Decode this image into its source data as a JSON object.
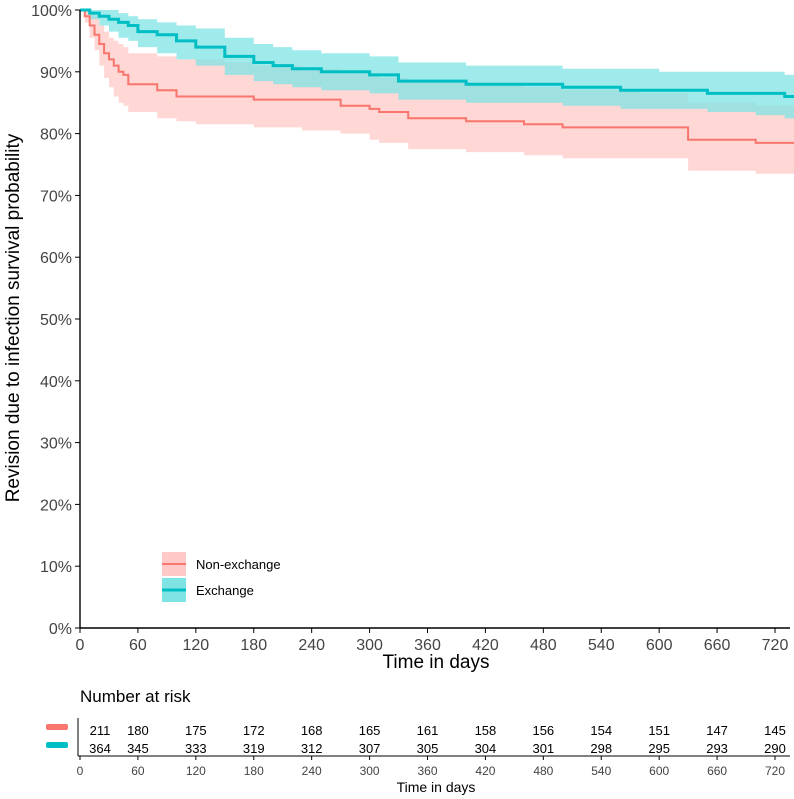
{
  "chart_data": {
    "type": "kaplan-meier",
    "title": "",
    "xlabel": "Time in days",
    "ylabel": "Revision due to infection survival probability",
    "xlim": [
      0,
      740
    ],
    "ylim": [
      0,
      100
    ],
    "x_ticks": [
      0,
      60,
      120,
      180,
      240,
      300,
      360,
      420,
      480,
      540,
      600,
      660,
      720
    ],
    "x_tick_labels": [
      "0",
      "60",
      "120",
      "180",
      "240",
      "300",
      "360",
      "420",
      "480",
      "540",
      "600",
      "660",
      "720"
    ],
    "y_ticks": [
      0,
      10,
      20,
      30,
      40,
      50,
      60,
      70,
      80,
      90,
      100
    ],
    "y_tick_labels": [
      "0%",
      "10%",
      "20%",
      "30%",
      "40%",
      "50%",
      "60%",
      "70%",
      "80%",
      "90%",
      "100%"
    ],
    "legend": {
      "position": "bottom-left",
      "entries": [
        "Non-exchange",
        "Exchange"
      ]
    },
    "series": [
      {
        "name": "Non-exchange",
        "line_color": "#F8766D",
        "band_color": "#FFC9C7",
        "x": [
          0,
          5,
          10,
          15,
          20,
          25,
          30,
          35,
          40,
          45,
          50,
          60,
          80,
          100,
          120,
          150,
          180,
          230,
          270,
          300,
          310,
          340,
          400,
          460,
          500,
          580,
          630,
          700,
          740
        ],
        "y": [
          100,
          99,
          97.5,
          96,
          94.5,
          93,
          92,
          91,
          90,
          89.5,
          88,
          88,
          87,
          86,
          86,
          86,
          85.5,
          85.5,
          84.5,
          84,
          83.5,
          82.5,
          82,
          81.5,
          81,
          81,
          79,
          78.5,
          78.5
        ],
        "lower": [
          100,
          98,
          95.5,
          93.5,
          91,
          89,
          87.5,
          86,
          85,
          84.5,
          83.5,
          83.5,
          82.5,
          82,
          81.5,
          81.5,
          81,
          80.5,
          80,
          79,
          78.5,
          77.5,
          77,
          76.5,
          76,
          76,
          74,
          73.5,
          73.5
        ],
        "upper": [
          100,
          100,
          99.5,
          99,
          97.5,
          96.5,
          95.5,
          95,
          94.5,
          94,
          93,
          93,
          92.5,
          92,
          92,
          91.5,
          91,
          90.5,
          90,
          89.5,
          89,
          88.5,
          88,
          87.5,
          87,
          86.5,
          85,
          84.5,
          84.5
        ]
      },
      {
        "name": "Exchange",
        "line_color": "#00BFC4",
        "band_color": "#7FE3E3",
        "x": [
          0,
          10,
          20,
          30,
          40,
          50,
          60,
          80,
          100,
          120,
          150,
          180,
          200,
          220,
          250,
          300,
          330,
          360,
          400,
          460,
          500,
          560,
          600,
          650,
          700,
          730,
          740
        ],
        "y": [
          100,
          99.5,
          99,
          98.5,
          98,
          97.5,
          96.5,
          96,
          95,
          94,
          92.5,
          91.5,
          91,
          90.5,
          90,
          89.5,
          88.5,
          88.5,
          88,
          88,
          87.5,
          87,
          87,
          86.5,
          86.5,
          86,
          86
        ],
        "lower": [
          100,
          98.5,
          97.5,
          96.5,
          95.5,
          95,
          94,
          93,
          92,
          91,
          89.5,
          88.5,
          88,
          87.5,
          87,
          86.5,
          85.5,
          85.5,
          85,
          85,
          84.5,
          84,
          84,
          83.5,
          83,
          82.5,
          82.5
        ],
        "upper": [
          100,
          100,
          100,
          100,
          99.5,
          99,
          98.5,
          98,
          97.5,
          97,
          95.5,
          94.5,
          94,
          93.5,
          93,
          92.5,
          91.5,
          91.5,
          91,
          91,
          90.5,
          90.5,
          90,
          90,
          90,
          89.5,
          89.5
        ]
      }
    ]
  },
  "risk_table": {
    "title": "Number at risk",
    "xlabel": "Time in days",
    "times": [
      0,
      60,
      120,
      180,
      240,
      300,
      360,
      420,
      480,
      540,
      600,
      660,
      720
    ],
    "time_labels": [
      "0",
      "60",
      "120",
      "180",
      "240",
      "300",
      "360",
      "420",
      "480",
      "540",
      "600",
      "660",
      "720"
    ],
    "rows": [
      {
        "name": "Non-exchange",
        "color": "#F8766D",
        "counts": [
          "211",
          "180",
          "175",
          "172",
          "168",
          "165",
          "161",
          "158",
          "156",
          "154",
          "151",
          "147",
          "145"
        ]
      },
      {
        "name": "Exchange",
        "color": "#00BFC4",
        "counts": [
          "364",
          "345",
          "333",
          "319",
          "312",
          "307",
          "305",
          "304",
          "301",
          "298",
          "295",
          "293",
          "290"
        ]
      }
    ]
  }
}
